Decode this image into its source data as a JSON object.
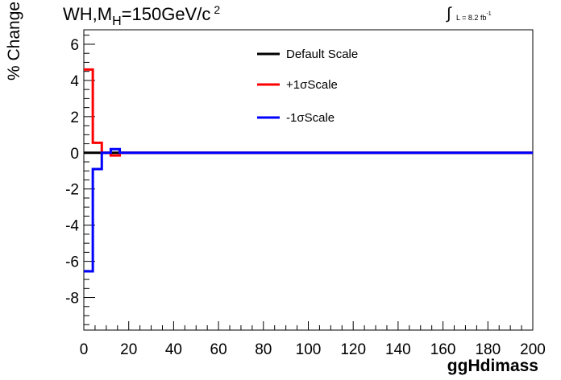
{
  "header": {
    "title_main": "WH,M",
    "title_sub": "H",
    "title_rest": "=150GeV/c",
    "title_sup": "2",
    "lumi_text": "L = 8.2 fb",
    "lumi_sup": "-1"
  },
  "chart_data": {
    "type": "line",
    "xlabel": "ggHdimass",
    "ylabel": "% Change",
    "xlim": [
      0,
      200
    ],
    "ylim": [
      -9.8,
      6.8
    ],
    "x_ticks": [
      0,
      20,
      40,
      60,
      80,
      100,
      120,
      140,
      160,
      180,
      200
    ],
    "y_ticks": [
      -8,
      -6,
      -4,
      -2,
      0,
      2,
      4,
      6
    ],
    "legend_position": "top-center",
    "grid": false,
    "series": [
      {
        "name": "Default Scale",
        "color": "#000000",
        "bin_edges": [
          0,
          4,
          8,
          12,
          16,
          200
        ],
        "values": [
          0,
          0,
          0,
          0,
          0
        ]
      },
      {
        "name": "+1σScale",
        "color": "#ff0000",
        "bin_edges": [
          0,
          4,
          8,
          12,
          16,
          200
        ],
        "values": [
          4.6,
          0.55,
          0,
          -0.15,
          0
        ]
      },
      {
        "name": "-1σScale",
        "color": "#0000ff",
        "bin_edges": [
          0,
          4,
          8,
          12,
          16,
          200
        ],
        "values": [
          -6.55,
          -0.9,
          0,
          0.2,
          0
        ]
      }
    ]
  }
}
